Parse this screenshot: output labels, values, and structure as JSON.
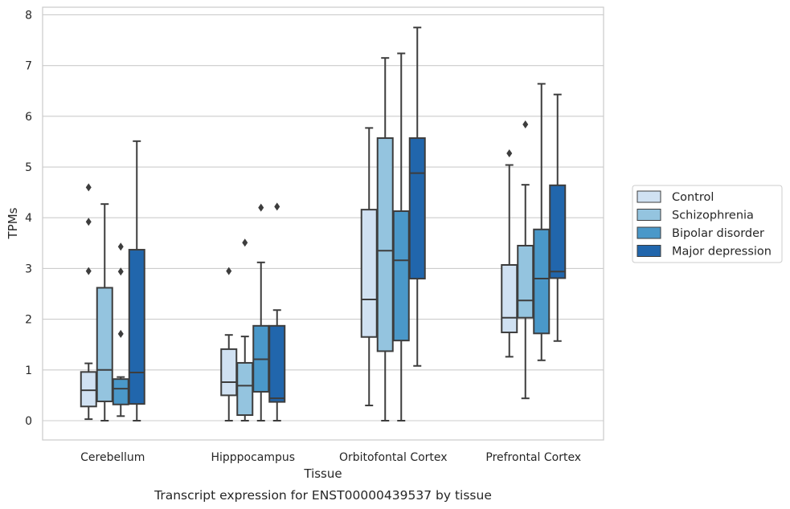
{
  "caption": "Transcript expression for ENST00000439537 by tissue",
  "chart_data": {
    "type": "boxplot",
    "xlabel": "Tissue",
    "ylabel": "TPMs",
    "ylim": [
      -0.38,
      8.15
    ],
    "yticks": [
      0,
      1,
      2,
      3,
      4,
      5,
      6,
      7,
      8
    ],
    "grid": "horizontal",
    "legend_position": "right",
    "categories": [
      "Cerebellum",
      "Hipppocampus",
      "Orbitofontal Cortex",
      "Prefrontal Cortex"
    ],
    "series": [
      {
        "name": "Control",
        "color": "#d0e1f2",
        "boxes": [
          {
            "whislo": 0.03,
            "q1": 0.28,
            "med": 0.6,
            "q3": 0.96,
            "whishi": 1.13,
            "fliers": [
              2.95,
              3.92,
              4.6
            ]
          },
          {
            "whislo": 0.0,
            "q1": 0.5,
            "med": 0.76,
            "q3": 1.41,
            "whishi": 1.69,
            "fliers": [
              2.95
            ]
          },
          {
            "whislo": 0.3,
            "q1": 1.65,
            "med": 2.39,
            "q3": 4.16,
            "whishi": 5.77,
            "fliers": []
          },
          {
            "whislo": 1.26,
            "q1": 1.74,
            "med": 2.03,
            "q3": 3.07,
            "whishi": 5.04,
            "fliers": [
              5.27
            ]
          }
        ]
      },
      {
        "name": "Schizophrenia",
        "color": "#94c4df",
        "boxes": [
          {
            "whislo": 0.0,
            "q1": 0.38,
            "med": 1.0,
            "q3": 2.62,
            "whishi": 4.27,
            "fliers": []
          },
          {
            "whislo": 0.0,
            "q1": 0.11,
            "med": 0.69,
            "q3": 1.14,
            "whishi": 1.66,
            "fliers": [
              3.51
            ]
          },
          {
            "whislo": 0.0,
            "q1": 1.37,
            "med": 3.35,
            "q3": 5.57,
            "whishi": 7.15,
            "fliers": []
          },
          {
            "whislo": 0.44,
            "q1": 2.03,
            "med": 2.37,
            "q3": 3.45,
            "whishi": 4.65,
            "fliers": [
              5.84
            ]
          }
        ]
      },
      {
        "name": "Bipolar disorder",
        "color": "#4a98c9",
        "boxes": [
          {
            "whislo": 0.09,
            "q1": 0.32,
            "med": 0.63,
            "q3": 0.82,
            "whishi": 0.86,
            "fliers": [
              1.71,
              2.94,
              3.43
            ]
          },
          {
            "whislo": 0.0,
            "q1": 0.57,
            "med": 1.21,
            "q3": 1.87,
            "whishi": 3.12,
            "fliers": [
              4.2
            ]
          },
          {
            "whislo": 0.0,
            "q1": 1.58,
            "med": 3.16,
            "q3": 4.13,
            "whishi": 7.24,
            "fliers": []
          },
          {
            "whislo": 1.19,
            "q1": 1.72,
            "med": 2.8,
            "q3": 3.77,
            "whishi": 6.64,
            "fliers": []
          }
        ]
      },
      {
        "name": "Major depression",
        "color": "#2166ac",
        "boxes": [
          {
            "whislo": 0.0,
            "q1": 0.33,
            "med": 0.95,
            "q3": 3.37,
            "whishi": 5.51,
            "fliers": []
          },
          {
            "whislo": 0.0,
            "q1": 0.37,
            "med": 0.44,
            "q3": 1.87,
            "whishi": 2.18,
            "fliers": [
              4.22
            ]
          },
          {
            "whislo": 1.08,
            "q1": 2.8,
            "med": 4.88,
            "q3": 5.57,
            "whishi": 7.75,
            "fliers": []
          },
          {
            "whislo": 1.57,
            "q1": 2.81,
            "med": 2.94,
            "q3": 4.64,
            "whishi": 6.43,
            "fliers": []
          }
        ]
      }
    ]
  }
}
